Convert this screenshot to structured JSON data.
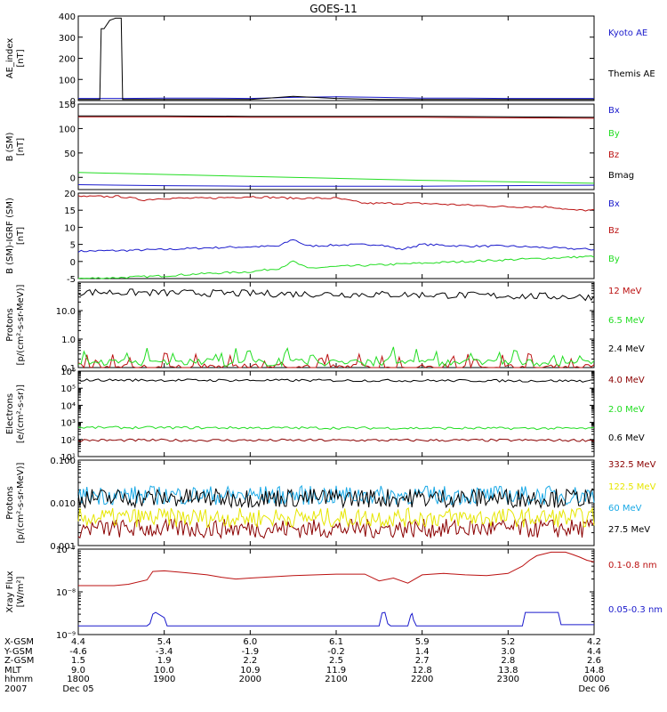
{
  "title": "GOES-11",
  "colors": {
    "black": "#000000",
    "blue": "#1a1acc",
    "green": "#22dd22",
    "red": "#bb1111",
    "darkred": "#8b0000",
    "yellow": "#e6e600",
    "cyan": "#1aa9e6"
  },
  "chart_data": [
    {
      "type": "line",
      "panel": "ae",
      "ylabel": [
        "AE_index",
        "[nT]"
      ],
      "ylim": [
        0,
        400
      ],
      "scale": "linear",
      "yticks": [
        0,
        100,
        200,
        300,
        400
      ],
      "yticklabels": [
        "0",
        "100",
        "200",
        "300",
        "400"
      ],
      "series": [
        {
          "name": "Kyoto AE",
          "color": "#1a1acc",
          "x": [
            0,
            30,
            60,
            90,
            120,
            150,
            180,
            210,
            240,
            270,
            300,
            330,
            360
          ],
          "y": [
            10,
            10,
            12,
            12,
            10,
            15,
            18,
            15,
            12,
            12,
            10,
            10,
            10
          ]
        },
        {
          "name": "Themis AE",
          "color": "#000000",
          "x": [
            0,
            15,
            16,
            18,
            22,
            26,
            28,
            30,
            31,
            60,
            90,
            120,
            150,
            180,
            210,
            240,
            270,
            300,
            330,
            360
          ],
          "y": [
            5,
            5,
            340,
            340,
            380,
            390,
            390,
            390,
            5,
            5,
            5,
            5,
            20,
            10,
            5,
            5,
            5,
            5,
            5,
            5
          ]
        }
      ]
    },
    {
      "type": "line",
      "panel": "b-sm",
      "ylabel": [
        "B (SM)",
        "[nT]"
      ],
      "ylim": [
        -25,
        150
      ],
      "scale": "linear",
      "yticks": [
        0,
        50,
        100,
        150
      ],
      "yticklabels": [
        "0",
        "50",
        "100",
        "150"
      ],
      "series": [
        {
          "name": "Bx",
          "color": "#1a1acc",
          "x": [
            0,
            60,
            120,
            180,
            240,
            300,
            360
          ],
          "y": [
            -15,
            -17,
            -18,
            -18,
            -18,
            -17,
            -16
          ]
        },
        {
          "name": "By",
          "color": "#22dd22",
          "x": [
            0,
            60,
            120,
            180,
            240,
            300,
            360
          ],
          "y": [
            10,
            6,
            2,
            -2,
            -6,
            -9,
            -12
          ]
        },
        {
          "name": "Bz",
          "color": "#bb1111",
          "x": [
            0,
            60,
            120,
            180,
            240,
            300,
            360
          ],
          "y": [
            124,
            124,
            123,
            123,
            123,
            122,
            121
          ]
        },
        {
          "name": "Bmag",
          "color": "#000000",
          "x": [
            0,
            60,
            120,
            180,
            240,
            300,
            360
          ],
          "y": [
            126,
            126,
            125,
            125,
            125,
            124,
            123
          ]
        }
      ]
    },
    {
      "type": "line",
      "panel": "b-igrf",
      "ylabel": [
        "B (SM)-IGRF (SM)",
        "[nT]"
      ],
      "ylim": [
        -5,
        20
      ],
      "scale": "linear",
      "yticks": [
        -5,
        0,
        5,
        10,
        15,
        20
      ],
      "yticklabels": [
        "-5",
        "0",
        "5",
        "10",
        "15",
        "20"
      ],
      "series": [
        {
          "name": "Bx",
          "color": "#1a1acc",
          "x": [
            0,
            30,
            60,
            90,
            120,
            140,
            150,
            160,
            180,
            210,
            225,
            240,
            270,
            300,
            330,
            360
          ],
          "y": [
            3,
            3.2,
            3.5,
            4,
            4.3,
            4.5,
            6.5,
            4.5,
            4.8,
            5,
            3.5,
            5,
            4.5,
            4.5,
            4,
            3.5
          ]
        },
        {
          "name": "By",
          "color": "#22dd22",
          "x": [
            0,
            30,
            60,
            90,
            120,
            140,
            150,
            160,
            180,
            210,
            240,
            270,
            300,
            330,
            360
          ],
          "y": [
            -5,
            -4.7,
            -4.2,
            -3.5,
            -3,
            -2,
            0,
            -2,
            -1.5,
            -1,
            -0.5,
            0,
            0.5,
            1,
            1.5
          ]
        },
        {
          "name": "Bz",
          "color": "#bb1111",
          "x": [
            0,
            30,
            45,
            60,
            90,
            120,
            150,
            180,
            200,
            210,
            240,
            270,
            300,
            330,
            345,
            360
          ],
          "y": [
            19,
            19,
            18,
            18.5,
            18.5,
            19,
            18.5,
            18.5,
            17,
            17,
            17,
            16.5,
            16,
            16,
            15,
            15
          ]
        }
      ]
    },
    {
      "type": "line",
      "panel": "protons-low",
      "ylabel": [
        "Protons",
        "[p/(cm²-s-sr-MeV)]"
      ],
      "ylim": [
        0.1,
        100
      ],
      "scale": "log",
      "yticks": [
        0.1,
        1.0,
        10.0
      ],
      "yticklabels": [
        "0.1",
        "1.0",
        "10.0"
      ],
      "series": [
        {
          "name": "12 MeV",
          "color": "#bb1111",
          "x": [
            0,
            360
          ],
          "y": [
            0.1,
            0.1
          ]
        },
        {
          "name": "6.5 MeV",
          "color": "#22dd22",
          "x": [
            0,
            360
          ],
          "y": [
            0.15,
            0.15
          ]
        },
        {
          "name": "2.4 MeV",
          "color": "#000000",
          "x": [
            0,
            60,
            120,
            180,
            240,
            300,
            360
          ],
          "y": [
            45,
            42,
            40,
            38,
            36,
            33,
            30
          ]
        }
      ]
    },
    {
      "type": "line",
      "panel": "electrons",
      "ylabel": [
        "Electrons",
        "[e/(cm²-s-sr)]"
      ],
      "ylim": [
        10,
        1000000
      ],
      "scale": "log",
      "yticks": [
        10,
        100,
        1000,
        10000,
        100000,
        1000000
      ],
      "yticklabels": [
        "10¹",
        "10²",
        "10³",
        "10⁴",
        "10⁵",
        "10⁶"
      ],
      "series": [
        {
          "name": "4.0 MeV",
          "color": "#8b0000",
          "x": [
            0,
            360
          ],
          "y": [
            90,
            90
          ]
        },
        {
          "name": "2.0 MeV",
          "color": "#22dd22",
          "x": [
            0,
            120,
            240,
            360
          ],
          "y": [
            500,
            480,
            460,
            440
          ]
        },
        {
          "name": "0.6 MeV",
          "color": "#000000",
          "x": [
            0,
            120,
            240,
            360
          ],
          "y": [
            300000,
            290000,
            280000,
            270000
          ]
        }
      ]
    },
    {
      "type": "line",
      "panel": "protons-high",
      "ylabel": [
        "Protons",
        "[p/(cm²-s-sr-MeV)]"
      ],
      "ylim": [
        0.001,
        0.1
      ],
      "scale": "log",
      "yticks": [
        0.001,
        0.01,
        0.1
      ],
      "yticklabels": [
        "0.001",
        "0.010",
        "0.100"
      ],
      "series": [
        {
          "name": "332.5 MeV",
          "color": "#8b0000",
          "x": [
            0,
            360
          ],
          "y": [
            0.0025,
            0.0025
          ]
        },
        {
          "name": "122.5 MeV",
          "color": "#e6e600",
          "x": [
            0,
            360
          ],
          "y": [
            0.0045,
            0.0045
          ]
        },
        {
          "name": "60 MeV",
          "color": "#1aa9e6",
          "x": [
            0,
            360
          ],
          "y": [
            0.015,
            0.015
          ]
        },
        {
          "name": "27.5 MeV",
          "color": "#000000",
          "x": [
            0,
            360
          ],
          "y": [
            0.013,
            0.013
          ]
        }
      ]
    },
    {
      "type": "line",
      "panel": "xray",
      "ylabel": [
        "Xray Flux",
        "[W/m²]"
      ],
      "ylim": [
        1e-09,
        1e-07
      ],
      "scale": "log",
      "yticks": [
        1e-09,
        1e-08,
        1e-07
      ],
      "yticklabels": [
        "10⁻⁹",
        "10⁻⁸",
        "10⁻⁷"
      ],
      "series": [
        {
          "name": "0.1-0.8 nm",
          "color": "#bb1111",
          "x": [
            0,
            25,
            35,
            48,
            52,
            60,
            75,
            90,
            100,
            110,
            120,
            150,
            180,
            200,
            210,
            220,
            230,
            235,
            240,
            255,
            270,
            285,
            300,
            310,
            315,
            320,
            330,
            340,
            345,
            350,
            355,
            360
          ],
          "y": [
            1.4e-08,
            1.4e-08,
            1.5e-08,
            1.9e-08,
            3e-08,
            3.1e-08,
            2.8e-08,
            2.5e-08,
            2.2e-08,
            2e-08,
            2.1e-08,
            2.4e-08,
            2.6e-08,
            2.6e-08,
            1.8e-08,
            2.1e-08,
            1.6e-08,
            2e-08,
            2.5e-08,
            2.7e-08,
            2.5e-08,
            2.4e-08,
            2.7e-08,
            4e-08,
            5.5e-08,
            7e-08,
            8.5e-08,
            8.5e-08,
            7.5e-08,
            6.5e-08,
            5.5e-08,
            5e-08
          ]
        },
        {
          "name": "0.05-0.3 nm",
          "color": "#1a1acc",
          "x": [
            0,
            48,
            50,
            52,
            54,
            60,
            62,
            90,
            120,
            150,
            180,
            210,
            212,
            214,
            216,
            218,
            230,
            232,
            233,
            234,
            236,
            270,
            300,
            310,
            312,
            335,
            337,
            360
          ],
          "y": [
            1.6e-09,
            1.6e-09,
            1.8e-09,
            3e-09,
            3.3e-09,
            2.5e-09,
            1.6e-09,
            1.6e-09,
            1.6e-09,
            1.6e-09,
            1.6e-09,
            1.6e-09,
            3.2e-09,
            3.3e-09,
            1.8e-09,
            1.6e-09,
            1.6e-09,
            2.8e-09,
            3.1e-09,
            2.2e-09,
            1.6e-09,
            1.6e-09,
            1.6e-09,
            1.6e-09,
            3.3e-09,
            3.3e-09,
            1.7e-09,
            1.7e-09
          ]
        }
      ]
    }
  ],
  "xaxis": {
    "row_labels": [
      "X-GSM",
      "Y-GSM",
      "Z-GSM",
      "MLT",
      "hhmm",
      "2007"
    ],
    "columns": [
      {
        "vals": [
          "4.4",
          "-4.6",
          "1.5",
          "9.0",
          "1800",
          "Dec 05"
        ]
      },
      {
        "vals": [
          "5.4",
          "-3.4",
          "1.9",
          "10.0",
          "1900",
          ""
        ]
      },
      {
        "vals": [
          "6.0",
          "-1.9",
          "2.2",
          "10.9",
          "2000",
          ""
        ]
      },
      {
        "vals": [
          "6.1",
          "-0.2",
          "2.5",
          "11.9",
          "2100",
          ""
        ]
      },
      {
        "vals": [
          "5.9",
          "1.4",
          "2.7",
          "12.8",
          "2200",
          ""
        ]
      },
      {
        "vals": [
          "5.2",
          "3.0",
          "2.8",
          "13.8",
          "2300",
          ""
        ]
      },
      {
        "vals": [
          "4.2",
          "4.4",
          "2.6",
          "14.8",
          "0000",
          "Dec 06"
        ]
      }
    ]
  }
}
